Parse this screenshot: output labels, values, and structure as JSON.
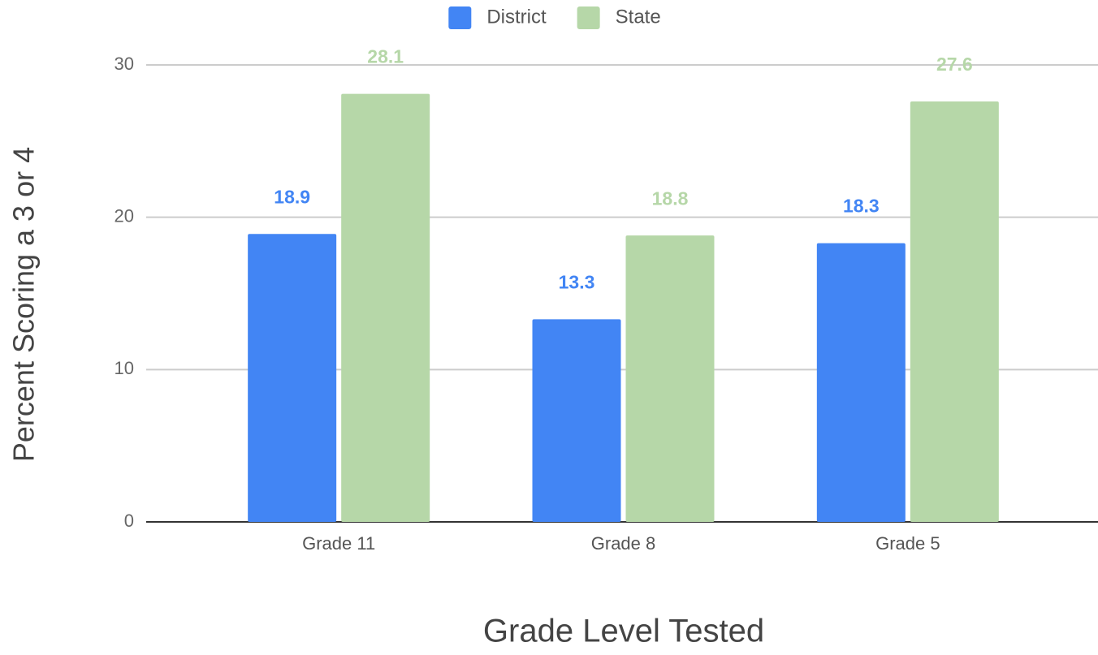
{
  "chart_data": {
    "type": "bar",
    "categories": [
      "Grade 11",
      "Grade 8",
      "Grade 5"
    ],
    "series": [
      {
        "name": "District",
        "color": "#4285f4",
        "values": [
          18.9,
          13.3,
          18.3
        ]
      },
      {
        "name": "State",
        "color": "#b6d7a8",
        "values": [
          28.1,
          18.8,
          27.6
        ]
      }
    ],
    "x_label": "Grade Level Tested",
    "y_label": "Percent Scoring a 3 or 4",
    "ylim": [
      0,
      30
    ],
    "yticks": [
      0,
      10,
      20,
      30
    ],
    "grid": true,
    "legend": "top"
  }
}
